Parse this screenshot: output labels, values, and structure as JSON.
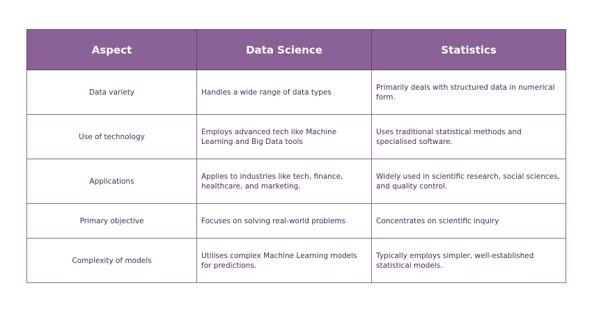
{
  "table": {
    "headers": [
      "Aspect",
      "Data Science",
      "Statistics"
    ],
    "rows": [
      {
        "aspect": "Data variety",
        "data_science": "Handles a wide range of data types",
        "statistics": "Primarily deals with structured data in numerical form."
      },
      {
        "aspect": "Use of technology",
        "data_science": "Employs advanced tech like Machine Learning and Big Data tools",
        "statistics": "Uses traditional statistical methods and specialised software."
      },
      {
        "aspect": "Applications",
        "data_science": "Applies to industries like tech, finance, healthcare, and marketing.",
        "statistics": "Widely used in scientific research, social sciences, and quality control."
      },
      {
        "aspect": "Primary objective",
        "data_science": "Focuses on solving real-world problems",
        "statistics": "Concentrates on scientific inquiry"
      },
      {
        "aspect": "Complexity of models",
        "data_science": "Utilises complex Machine Learning models for predictions.",
        "statistics": "Typically employs simpler, well-established statistical models."
      }
    ]
  },
  "colors": {
    "header_bg": "#8a6297",
    "header_text": "#ffffff",
    "border": "#8a6297",
    "body_text": "#4a2a55"
  }
}
